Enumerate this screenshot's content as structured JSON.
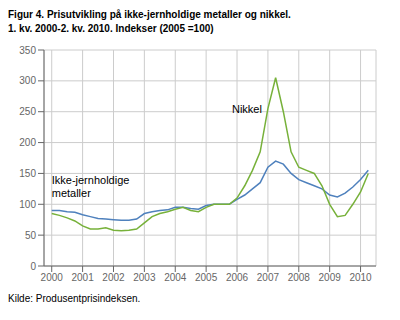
{
  "chart_data": {
    "type": "line",
    "title": "Figur 4. Prisutvikling på ikke-jernholdige metaller og nikkel.",
    "subtitle": "1. kv. 2000-2. kv. 2010. Indekser (2005 =100)",
    "annotations": [
      "Kilde: Produsentprisindeksen."
    ],
    "x": [
      2000,
      2000.25,
      2000.5,
      2000.75,
      2001,
      2001.25,
      2001.5,
      2001.75,
      2002,
      2002.25,
      2002.5,
      2002.75,
      2003,
      2003.25,
      2003.5,
      2003.75,
      2004,
      2004.25,
      2004.5,
      2004.75,
      2005,
      2005.25,
      2005.5,
      2005.75,
      2006,
      2006.25,
      2006.5,
      2006.75,
      2007,
      2007.25,
      2007.5,
      2007.75,
      2008,
      2008.25,
      2008.5,
      2008.75,
      2009,
      2009.25,
      2009.5,
      2009.75,
      2010,
      2010.25
    ],
    "series": [
      {
        "name": "Ikke-jernholdige\nmetaller",
        "color": "#4f81bd",
        "values": [
          90,
          90,
          88,
          87,
          83,
          80,
          77,
          76,
          75,
          74,
          74,
          76,
          85,
          88,
          90,
          91,
          95,
          95,
          93,
          92,
          98,
          100,
          100,
          100,
          108,
          115,
          125,
          135,
          160,
          170,
          165,
          150,
          140,
          135,
          130,
          125,
          115,
          112,
          118,
          128,
          140,
          155
        ]
      },
      {
        "name": "Nikkel",
        "color": "#77b13a",
        "values": [
          85,
          82,
          78,
          73,
          65,
          60,
          60,
          62,
          58,
          57,
          58,
          60,
          70,
          80,
          85,
          88,
          92,
          95,
          90,
          88,
          95,
          100,
          100,
          100,
          110,
          130,
          155,
          185,
          255,
          305,
          250,
          185,
          160,
          155,
          150,
          130,
          100,
          80,
          82,
          100,
          120,
          150
        ]
      }
    ],
    "xlim": [
      1999.75,
      2010.5
    ],
    "xticks": [
      2000,
      2001,
      2002,
      2003,
      2004,
      2005,
      2006,
      2007,
      2008,
      2009,
      2010
    ],
    "ylim": [
      0,
      350
    ],
    "yticks": [
      0,
      50,
      100,
      150,
      200,
      250,
      300,
      350
    ],
    "grid": true
  }
}
